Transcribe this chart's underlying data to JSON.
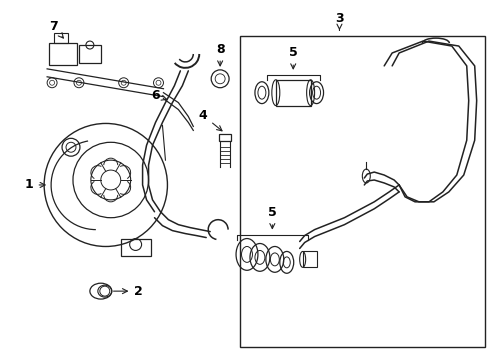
{
  "background_color": "#ffffff",
  "line_color": "#222222",
  "fig_width": 4.89,
  "fig_height": 3.6,
  "dpi": 100
}
